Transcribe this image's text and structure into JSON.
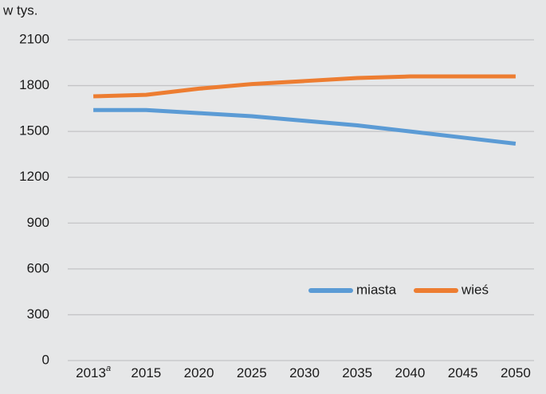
{
  "chart_data": {
    "type": "line",
    "y_label": "w tys.",
    "categories": [
      "2013",
      "2015",
      "2020",
      "2025",
      "2030",
      "2035",
      "2040",
      "2045",
      "2050"
    ],
    "category_superscripts": [
      "a",
      null,
      null,
      null,
      null,
      null,
      null,
      null,
      null
    ],
    "series": [
      {
        "name": "miasta",
        "color": "#5b9bd5",
        "values": [
          1640,
          1640,
          1620,
          1600,
          1570,
          1540,
          1500,
          1460,
          1420
        ]
      },
      {
        "name": "wieś",
        "color": "#ed7d31",
        "values": [
          1730,
          1740,
          1780,
          1810,
          1830,
          1850,
          1860,
          1860,
          1860
        ]
      }
    ],
    "ylim": [
      0,
      2100
    ],
    "yticks": [
      0,
      300,
      600,
      900,
      1200,
      1500,
      1800,
      2100
    ],
    "grid": true,
    "legend": "bottom-right"
  }
}
